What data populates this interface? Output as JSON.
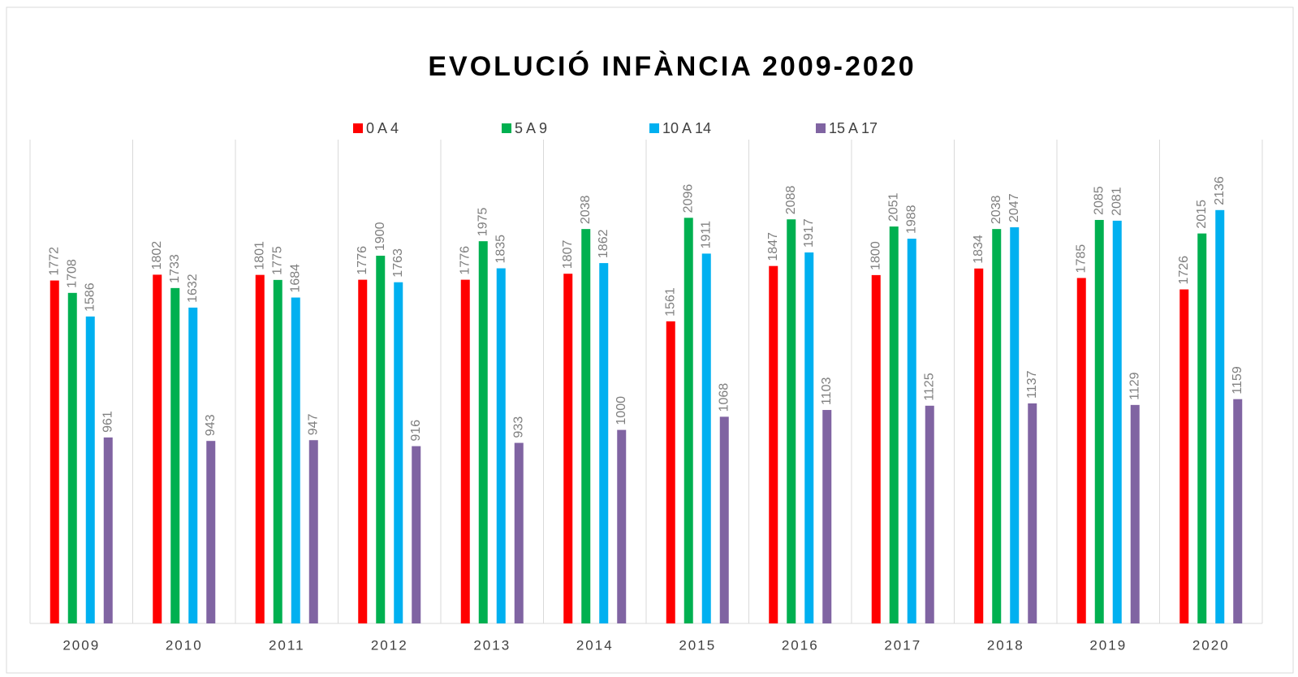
{
  "chart_data": {
    "type": "bar",
    "title": "EVOLUCIÓ INFÀNCIA 2009-2020",
    "categories": [
      "2009",
      "2010",
      "2011",
      "2012",
      "2013",
      "2014",
      "2015",
      "2016",
      "2017",
      "2018",
      "2019",
      "2020"
    ],
    "series": [
      {
        "name": "0 A 4",
        "color": "#ff0000",
        "values": [
          1772,
          1802,
          1801,
          1776,
          1776,
          1807,
          1561,
          1847,
          1800,
          1834,
          1785,
          1726
        ]
      },
      {
        "name": "5 A 9",
        "color": "#00b050",
        "values": [
          1708,
          1733,
          1775,
          1900,
          1975,
          2038,
          2096,
          2088,
          2051,
          2038,
          2085,
          2015
        ]
      },
      {
        "name": "10 A 14",
        "color": "#00b0f0",
        "values": [
          1586,
          1632,
          1684,
          1763,
          1835,
          1862,
          1911,
          1917,
          1988,
          2047,
          2081,
          2136
        ]
      },
      {
        "name": "15 A 17",
        "color": "#8064a2",
        "values": [
          961,
          943,
          947,
          916,
          933,
          1000,
          1068,
          1103,
          1125,
          1137,
          1129,
          1159
        ]
      }
    ],
    "ylim": [
      0,
      2500
    ],
    "legend": "top",
    "category_grid": true
  }
}
